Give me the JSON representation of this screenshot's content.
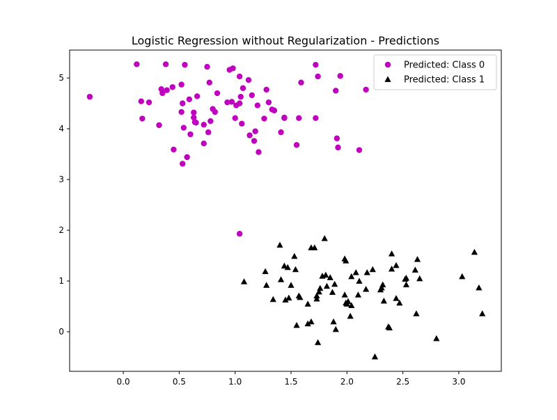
{
  "chart_data": {
    "type": "scatter",
    "title": "Logistic Regression without Regularization - Predictions",
    "xlabel": "",
    "ylabel": "",
    "xlim": [
      -0.48,
      3.38
    ],
    "ylim": [
      -0.78,
      5.55
    ],
    "xticks": [
      0.0,
      0.5,
      1.0,
      1.5,
      2.0,
      2.5,
      3.0
    ],
    "xtick_labels": [
      "0.0",
      "0.5",
      "1.0",
      "1.5",
      "2.0",
      "2.5",
      "3.0"
    ],
    "yticks": [
      0,
      1,
      2,
      3,
      4,
      5
    ],
    "ytick_labels": [
      "0",
      "1",
      "2",
      "3",
      "4",
      "5"
    ],
    "grid": false,
    "legend_position": "top-right",
    "series": [
      {
        "name": "Predicted: Class 0",
        "marker": "circle",
        "color": "#bf00bf",
        "points": [
          [
            -0.3,
            4.63
          ],
          [
            0.12,
            5.27
          ],
          [
            0.16,
            4.54
          ],
          [
            0.17,
            4.2
          ],
          [
            0.23,
            4.52
          ],
          [
            0.32,
            4.07
          ],
          [
            0.34,
            4.78
          ],
          [
            0.35,
            4.7
          ],
          [
            0.38,
            5.27
          ],
          [
            0.39,
            4.76
          ],
          [
            0.44,
            4.82
          ],
          [
            0.45,
            3.59
          ],
          [
            0.52,
            4.87
          ],
          [
            0.52,
            4.33
          ],
          [
            0.53,
            4.5
          ],
          [
            0.53,
            3.31
          ],
          [
            0.54,
            4.02
          ],
          [
            0.55,
            5.26
          ],
          [
            0.57,
            3.44
          ],
          [
            0.59,
            4.58
          ],
          [
            0.6,
            3.89
          ],
          [
            0.63,
            4.32
          ],
          [
            0.63,
            4.22
          ],
          [
            0.64,
            4.13
          ],
          [
            0.65,
            4.12
          ],
          [
            0.66,
            4.64
          ],
          [
            0.72,
            4.08
          ],
          [
            0.72,
            3.71
          ],
          [
            0.75,
            5.22
          ],
          [
            0.76,
            3.93
          ],
          [
            0.77,
            4.91
          ],
          [
            0.78,
            4.15
          ],
          [
            0.8,
            4.39
          ],
          [
            0.82,
            4.33
          ],
          [
            0.84,
            4.7
          ],
          [
            0.93,
            4.52
          ],
          [
            0.95,
            5.16
          ],
          [
            0.97,
            4.53
          ],
          [
            0.98,
            5.19
          ],
          [
            1.0,
            4.21
          ],
          [
            1.01,
            4.46
          ],
          [
            1.04,
            5.03
          ],
          [
            1.04,
            4.5
          ],
          [
            1.05,
            4.63
          ],
          [
            1.06,
            4.1
          ],
          [
            1.07,
            4.8
          ],
          [
            1.12,
            4.96
          ],
          [
            1.13,
            3.87
          ],
          [
            1.15,
            4.66
          ],
          [
            1.17,
            3.76
          ],
          [
            1.18,
            3.95
          ],
          [
            1.2,
            4.46
          ],
          [
            1.21,
            3.54
          ],
          [
            1.26,
            4.2
          ],
          [
            1.28,
            4.77
          ],
          [
            1.3,
            4.52
          ],
          [
            1.33,
            4.38
          ],
          [
            1.35,
            4.36
          ],
          [
            1.41,
            3.93
          ],
          [
            1.44,
            4.21
          ],
          [
            1.44,
            4.22
          ],
          [
            1.55,
            3.68
          ],
          [
            1.57,
            4.21
          ],
          [
            1.59,
            4.91
          ],
          [
            1.72,
            5.26
          ],
          [
            1.72,
            4.21
          ],
          [
            1.74,
            5.03
          ],
          [
            1.9,
            4.75
          ],
          [
            1.91,
            3.81
          ],
          [
            1.92,
            3.63
          ],
          [
            1.94,
            5.04
          ],
          [
            2.11,
            3.58
          ],
          [
            2.17,
            4.77
          ],
          [
            1.04,
            1.93
          ]
        ]
      },
      {
        "name": "Predicted: Class 1",
        "marker": "triangle",
        "color": "#000000",
        "points": [
          [
            1.08,
            0.99
          ],
          [
            1.27,
            1.19
          ],
          [
            1.28,
            0.92
          ],
          [
            1.34,
            0.64
          ],
          [
            1.4,
            1.71
          ],
          [
            1.41,
            1.03
          ],
          [
            1.44,
            1.3
          ],
          [
            1.45,
            0.63
          ],
          [
            1.47,
            1.27
          ],
          [
            1.48,
            0.67
          ],
          [
            1.5,
            0.92
          ],
          [
            1.53,
            1.49
          ],
          [
            1.54,
            1.23
          ],
          [
            1.55,
            0.13
          ],
          [
            1.57,
            0.71
          ],
          [
            1.58,
            0.68
          ],
          [
            1.65,
            0.55
          ],
          [
            1.65,
            0.16
          ],
          [
            1.68,
            0.2
          ],
          [
            1.68,
            1.66
          ],
          [
            1.71,
            1.66
          ],
          [
            1.73,
            0.71
          ],
          [
            1.73,
            0.65
          ],
          [
            1.74,
            -0.21
          ],
          [
            1.75,
            0.79
          ],
          [
            1.76,
            0.86
          ],
          [
            1.78,
            1.1
          ],
          [
            1.8,
            1.84
          ],
          [
            1.81,
            1.12
          ],
          [
            1.82,
            0.9
          ],
          [
            1.85,
            1.07
          ],
          [
            1.87,
            0.78
          ],
          [
            1.88,
            0.2
          ],
          [
            1.89,
            0.94
          ],
          [
            1.9,
            0.05
          ],
          [
            1.98,
            0.73
          ],
          [
            1.98,
            1.44
          ],
          [
            1.99,
            0.57
          ],
          [
            1.99,
            1.4
          ],
          [
            2.0,
            0.55
          ],
          [
            2.01,
            0.6
          ],
          [
            2.03,
            0.31
          ],
          [
            2.04,
            1.09
          ],
          [
            2.04,
            0.52
          ],
          [
            2.08,
            1.17
          ],
          [
            2.1,
            0.73
          ],
          [
            2.11,
            1.0
          ],
          [
            2.17,
            0.84
          ],
          [
            2.18,
            1.17
          ],
          [
            2.23,
            1.23
          ],
          [
            2.25,
            -0.49
          ],
          [
            2.3,
            0.83
          ],
          [
            2.31,
            0.87
          ],
          [
            2.32,
            0.93
          ],
          [
            2.33,
            0.61
          ],
          [
            2.37,
            0.1
          ],
          [
            2.38,
            0.08
          ],
          [
            2.4,
            1.54
          ],
          [
            2.4,
            1.24
          ],
          [
            2.44,
            1.31
          ],
          [
            2.44,
            0.66
          ],
          [
            2.47,
            0.57
          ],
          [
            2.52,
            1.04
          ],
          [
            2.53,
            0.93
          ],
          [
            2.53,
            1.06
          ],
          [
            2.61,
            1.22
          ],
          [
            2.62,
            0.36
          ],
          [
            2.63,
            1.43
          ],
          [
            2.65,
            1.05
          ],
          [
            2.8,
            -0.13
          ],
          [
            3.03,
            1.09
          ],
          [
            3.14,
            1.57
          ],
          [
            3.18,
            0.87
          ],
          [
            3.21,
            0.36
          ]
        ]
      }
    ]
  }
}
